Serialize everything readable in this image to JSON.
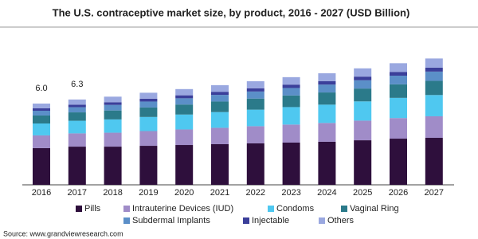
{
  "chart_data": {
    "type": "stacked-bar",
    "title": "The U.S. contraceptive market size, by product, 2016 - 2027 (USD Billion)",
    "source": "Source: www.grandviewresearch.com",
    "categories": [
      "2016",
      "2017",
      "2018",
      "2019",
      "2020",
      "2021",
      "2022",
      "2023",
      "2024",
      "2025",
      "2026",
      "2027"
    ],
    "totals": [
      6,
      6.3
    ],
    "total_labels": [
      "6.0",
      "6.3"
    ],
    "series": [
      {
        "name": "Pills",
        "color": "#2e0f3c",
        "values": [
          2.71,
          2.82,
          2.82,
          2.88,
          2.94,
          3.0,
          3.06,
          3.12,
          3.18,
          3.29,
          3.41,
          3.47
        ]
      },
      {
        "name": "Intrauterine Devices (IUD)",
        "color": "#a08cc8",
        "values": [
          0.94,
          0.98,
          1.03,
          1.09,
          1.15,
          1.21,
          1.27,
          1.33,
          1.39,
          1.45,
          1.52,
          1.59
        ]
      },
      {
        "name": "Condoms",
        "color": "#4fc8f0",
        "values": [
          0.88,
          0.93,
          0.98,
          1.04,
          1.1,
          1.16,
          1.22,
          1.29,
          1.35,
          1.42,
          1.49,
          1.57
        ]
      },
      {
        "name": "Vaginal Ring",
        "color": "#2b7a8a",
        "values": [
          0.59,
          0.62,
          0.66,
          0.7,
          0.74,
          0.78,
          0.82,
          0.86,
          0.9,
          0.95,
          1.0,
          1.05
        ]
      },
      {
        "name": "Subdermal Implants",
        "color": "#5b8fc8",
        "values": [
          0.35,
          0.38,
          0.41,
          0.44,
          0.46,
          0.49,
          0.52,
          0.55,
          0.58,
          0.61,
          0.64,
          0.68
        ]
      },
      {
        "name": "Injectable",
        "color": "#3b3f9a",
        "values": [
          0.18,
          0.19,
          0.2,
          0.21,
          0.22,
          0.23,
          0.24,
          0.25,
          0.26,
          0.27,
          0.28,
          0.29
        ]
      },
      {
        "name": "Others",
        "color": "#9aa8e0",
        "values": [
          0.35,
          0.38,
          0.41,
          0.44,
          0.46,
          0.49,
          0.52,
          0.55,
          0.58,
          0.61,
          0.64,
          0.68
        ]
      }
    ]
  }
}
